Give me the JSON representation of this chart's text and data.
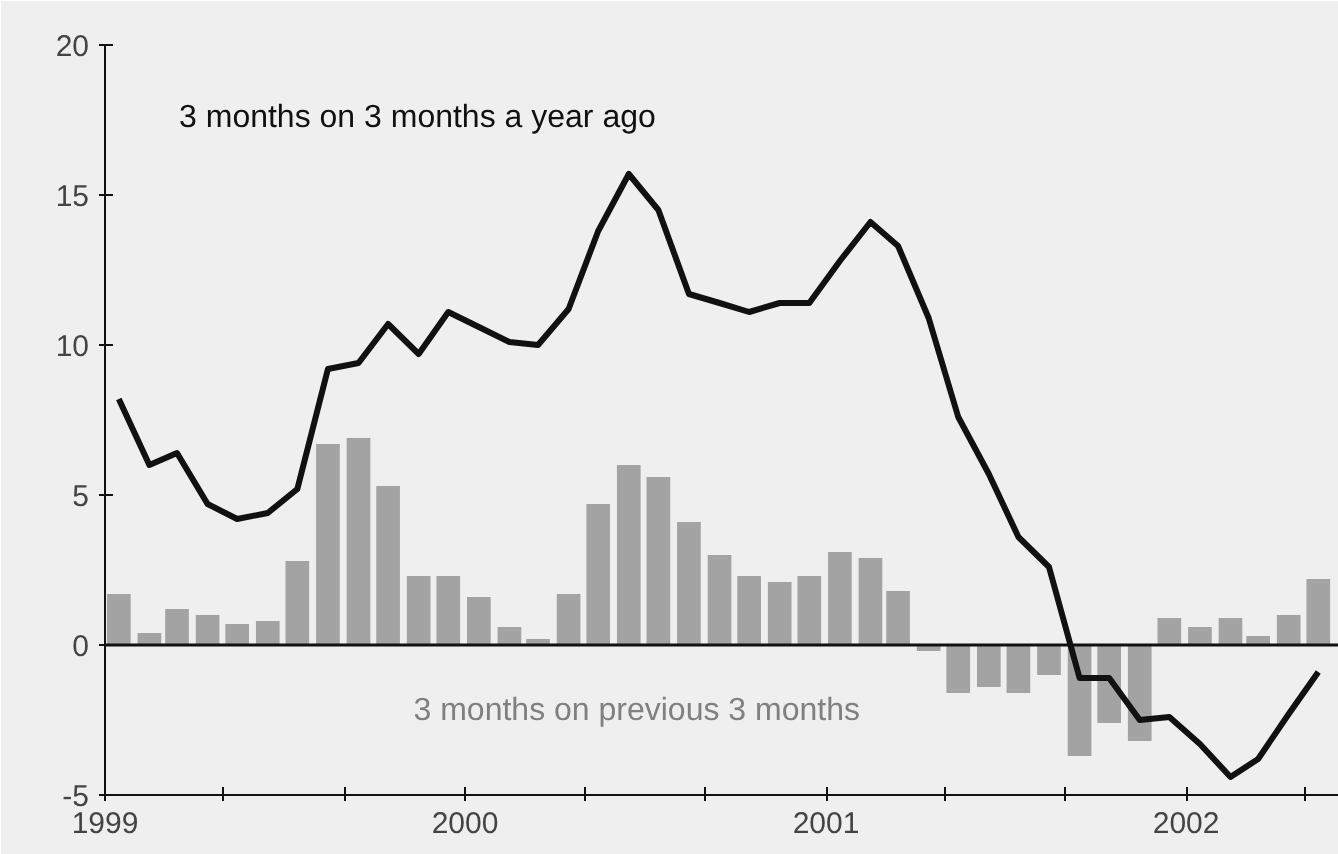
{
  "chart_data": {
    "type": "bar",
    "x": [
      "1999-01-15",
      "1999-02-15",
      "1999-03-15",
      "1999-04-15",
      "1999-05-15",
      "1999-06-15",
      "1999-07-15",
      "1999-08-15",
      "1999-09-15",
      "1999-10-15",
      "1999-11-15",
      "1999-12-15",
      "2000-01-15",
      "2000-02-15",
      "2000-03-15",
      "2000-04-15",
      "2000-05-15",
      "2000-06-15",
      "2000-07-15",
      "2000-08-15",
      "2000-09-15",
      "2000-10-15",
      "2000-11-15",
      "2000-12-15",
      "2001-01-15",
      "2001-02-15",
      "2001-03-15",
      "2001-04-15",
      "2001-05-15",
      "2001-06-15",
      "2001-07-15",
      "2001-08-15",
      "2001-09-15",
      "2001-10-15",
      "2001-11-15",
      "2001-12-15",
      "2002-01-15",
      "2002-02-15",
      "2002-03-15",
      "2002-04-15",
      "2002-05-15"
    ],
    "series": [
      {
        "name": "3 months on previous 3 months",
        "color": "#a3a3a3",
        "values": [
          1.7,
          0.4,
          1.2,
          1.0,
          0.7,
          0.8,
          2.8,
          6.7,
          6.9,
          5.3,
          2.3,
          2.3,
          1.6,
          0.6,
          0.2,
          1.7,
          4.7,
          6.0,
          5.6,
          4.1,
          3.0,
          2.3,
          2.1,
          2.3,
          3.1,
          2.9,
          1.8,
          -0.2,
          -1.6,
          -1.4,
          -1.6,
          -1.0,
          -3.7,
          -2.6,
          -3.2,
          0.9,
          0.6,
          0.9,
          0.3,
          1.0,
          2.2
        ]
      },
      {
        "name": "3 months on 3 months a year ago",
        "type": "line",
        "color": "#111111",
        "values": [
          8.2,
          6.0,
          6.4,
          4.7,
          4.2,
          4.4,
          5.2,
          9.2,
          9.4,
          10.7,
          9.7,
          11.1,
          10.6,
          10.1,
          10.0,
          11.2,
          13.8,
          15.7,
          14.5,
          11.7,
          11.4,
          11.1,
          11.4,
          11.4,
          12.8,
          14.1,
          13.3,
          10.9,
          7.6,
          5.7,
          3.6,
          2.6,
          -1.1,
          -1.1,
          -2.5,
          -2.4,
          -3.3,
          -4.4,
          -3.8,
          -2.3,
          -0.9
        ]
      }
    ],
    "xlim": [
      "1999-01-01",
      "2002-06-05"
    ],
    "xticks": [
      {
        "value": "1999-01-01",
        "label": "1999"
      },
      {
        "value": "1999-05-01",
        "label": null
      },
      {
        "value": "1999-09-01",
        "label": null
      },
      {
        "value": "2000-01-01",
        "label": "2000"
      },
      {
        "value": "2000-05-01",
        "label": null
      },
      {
        "value": "2000-09-01",
        "label": null
      },
      {
        "value": "2001-01-01",
        "label": "2001"
      },
      {
        "value": "2001-05-01",
        "label": null
      },
      {
        "value": "2001-09-01",
        "label": null
      },
      {
        "value": "2002-01-01",
        "label": "2002"
      },
      {
        "value": "2002-05-01",
        "label": null
      }
    ],
    "ylim": [
      -5,
      20
    ],
    "yticks": [
      -5,
      0,
      5,
      10,
      15,
      20
    ],
    "ref_lines": [
      {
        "axis": "y",
        "value": 0,
        "label": null,
        "color": "#111111"
      }
    ],
    "grid": false,
    "line_style": "solid",
    "marker": "none"
  }
}
